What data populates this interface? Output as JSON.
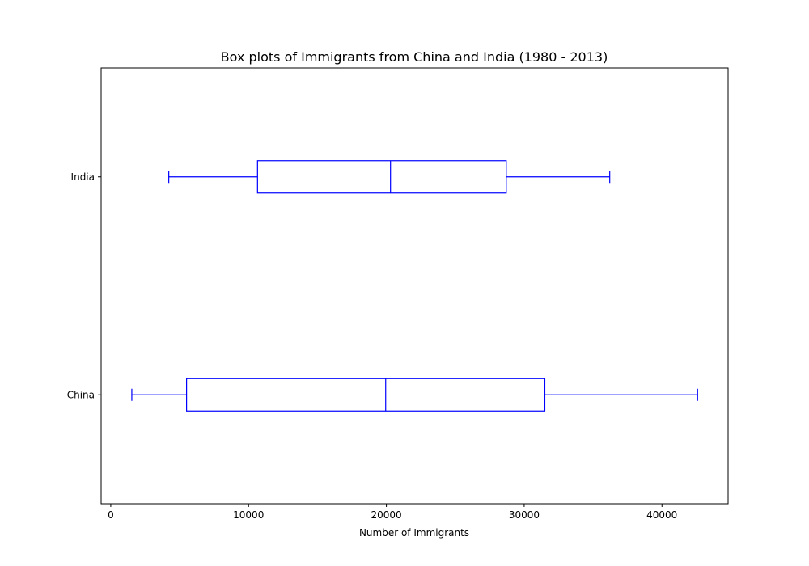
{
  "chart_data": {
    "type": "box",
    "orientation": "horizontal",
    "title": "Box plots of Immigrants from China and India (1980 - 2013)",
    "xlabel": "Number of Immigrants",
    "ylabel": "",
    "xlim": [
      -700,
      44800
    ],
    "xticks": [
      0,
      10000,
      20000,
      30000,
      40000
    ],
    "grid": false,
    "color": "#0000ff",
    "categories": [
      "China",
      "India"
    ],
    "series": [
      {
        "category": "China",
        "whisker_low": 1527,
        "q1": 5500,
        "median": 19950,
        "q3": 31500,
        "whisker_high": 42584
      },
      {
        "category": "India",
        "whisker_low": 4211,
        "q1": 10650,
        "median": 20300,
        "q3": 28700,
        "whisker_high": 36210
      }
    ]
  }
}
